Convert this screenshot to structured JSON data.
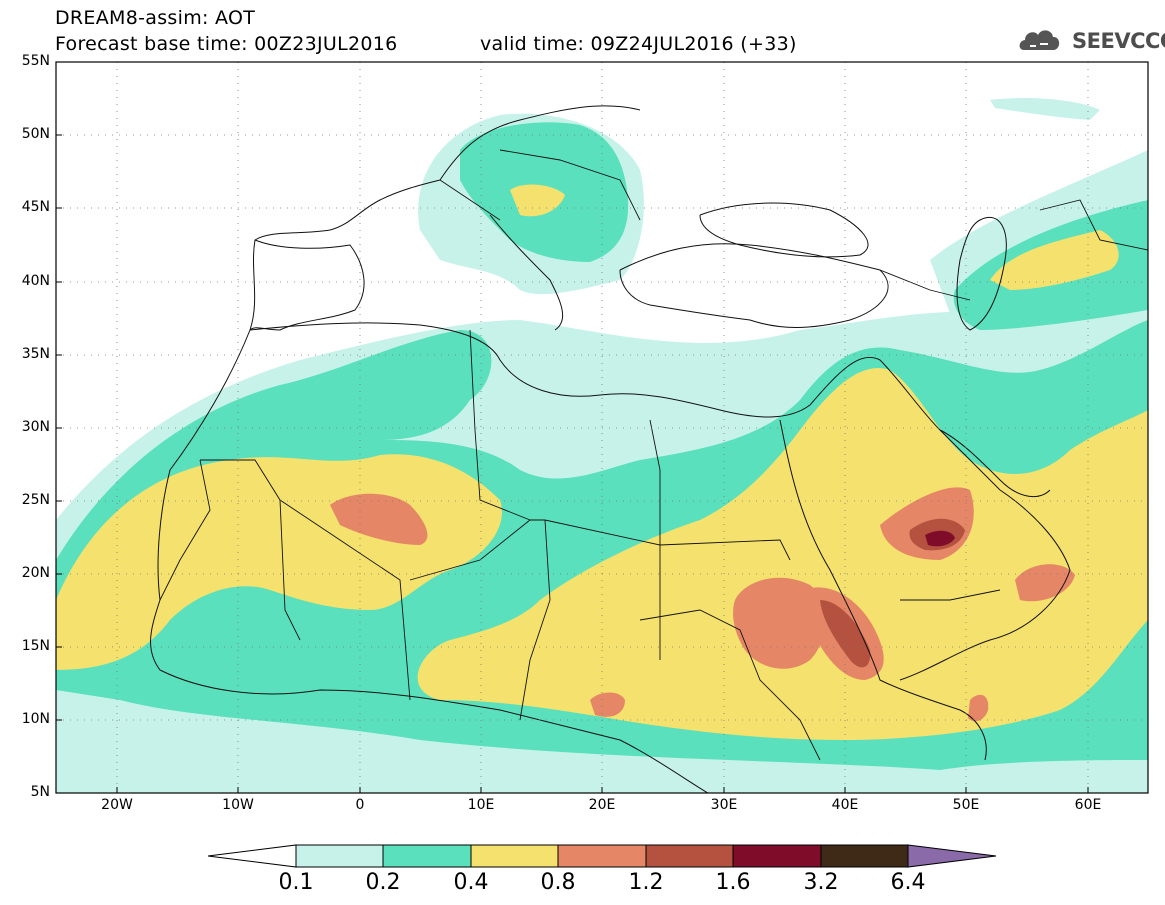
{
  "header": {
    "title_line1": "DREAM8-assim: AOT",
    "title_line2": "Forecast base time: 00Z23JUL2016",
    "valid_time": "valid time: 09Z24JUL2016 (+33)",
    "logo_text": "SEEVCCC"
  },
  "axes": {
    "lat_labels": [
      "55N",
      "50N",
      "45N",
      "40N",
      "35N",
      "30N",
      "25N",
      "20N",
      "15N",
      "10N",
      "5N"
    ],
    "lon_labels": [
      "20W",
      "10W",
      "0",
      "10E",
      "20E",
      "30E",
      "40E",
      "50E",
      "60E"
    ]
  },
  "colorbar": {
    "labels": [
      "0.1",
      "0.2",
      "0.4",
      "0.8",
      "1.2",
      "1.6",
      "3.2",
      "6.4"
    ],
    "colors": [
      "#ffffff",
      "#c7f2ea",
      "#5ae0bc",
      "#f5e16e",
      "#e58666",
      "#b5523f",
      "#7f0d29",
      "#3f2a18",
      "#8a6aa8"
    ]
  },
  "field_colors": {
    "aot_0_1_0_2": "#c7f2ea",
    "aot_0_2_0_4": "#5ae0bc",
    "aot_0_4_0_8": "#f5e16e",
    "aot_0_8_1_2": "#e58666",
    "aot_1_2_1_6": "#b5523f",
    "aot_1_6_3_2": "#7f0d29"
  }
}
